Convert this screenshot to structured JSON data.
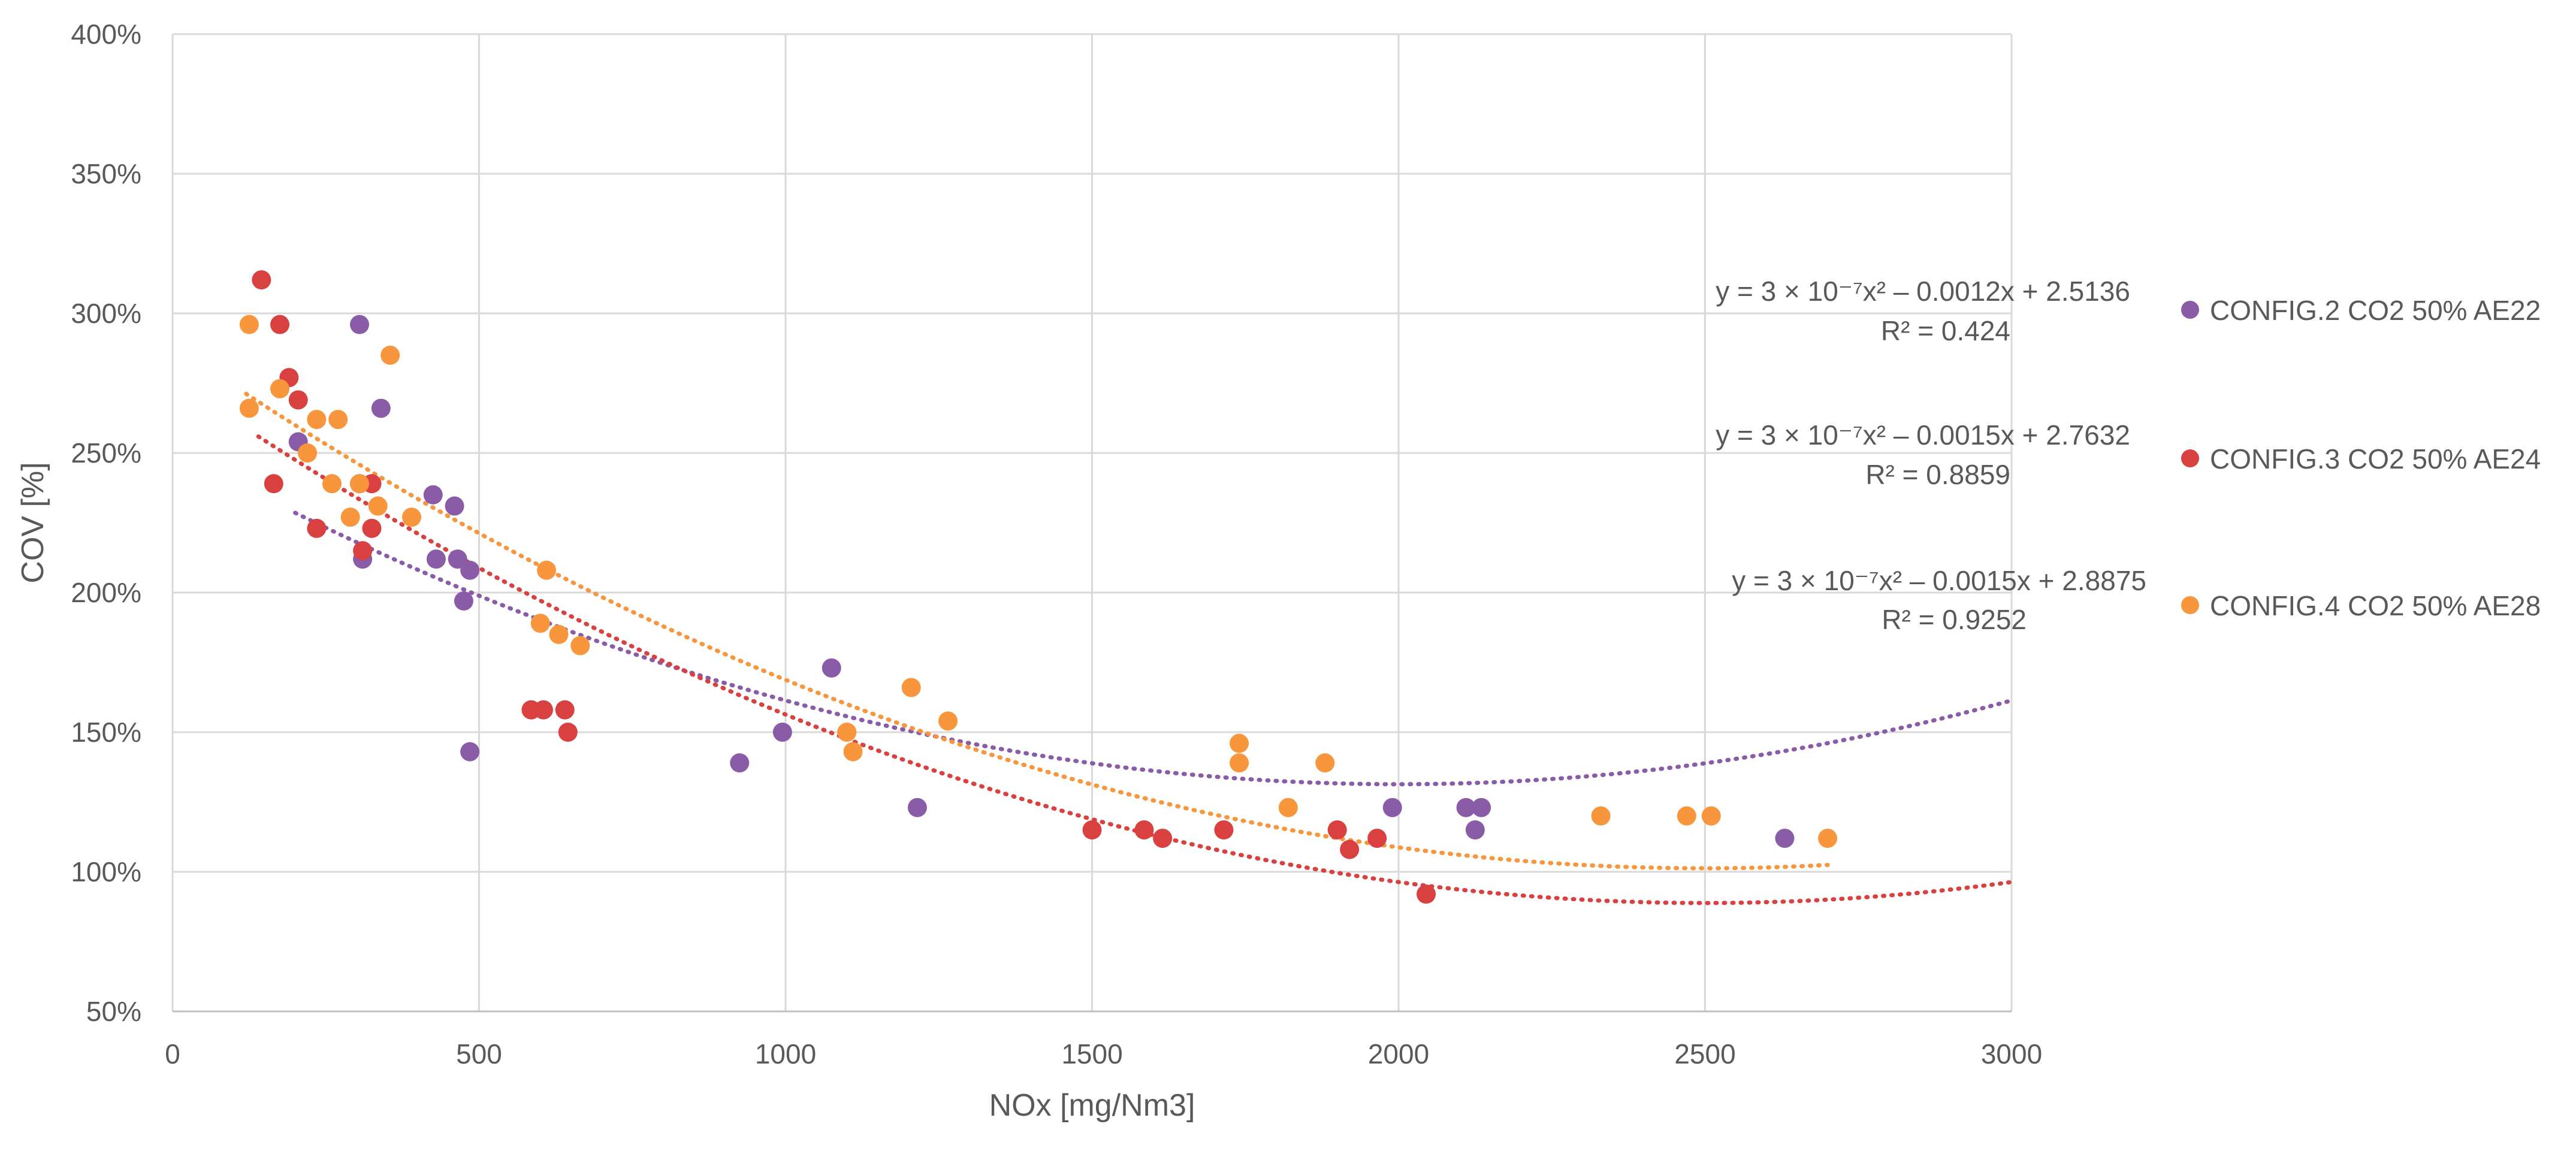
{
  "chart_data": {
    "type": "scatter",
    "title": "",
    "xlabel": "NOx [mg/Nm3]",
    "ylabel": "COV [%]",
    "xlim": [
      0,
      3000
    ],
    "ylim": [
      50,
      400
    ],
    "x_ticks": [
      0,
      500,
      1000,
      1500,
      2000,
      2500,
      3000
    ],
    "y_ticks": [
      50,
      100,
      150,
      200,
      250,
      300,
      350,
      400
    ],
    "x_tick_labels": [
      "0",
      "500",
      "1000",
      "1500",
      "2000",
      "2500",
      "3000"
    ],
    "y_tick_labels": [
      "50%",
      "100%",
      "150%",
      "200%",
      "250%",
      "300%",
      "350%",
      "400%"
    ],
    "grid": true,
    "legend_position": "right",
    "series": [
      {
        "name": "CONFIG.2 CO2 50% AE22",
        "color": "#8a5ca8",
        "points": [
          [
            205,
            254
          ],
          [
            305,
            296
          ],
          [
            310,
            212
          ],
          [
            340,
            266
          ],
          [
            425,
            235
          ],
          [
            430,
            212
          ],
          [
            460,
            231
          ],
          [
            465,
            212
          ],
          [
            475,
            197
          ],
          [
            485,
            208
          ],
          [
            485,
            143
          ],
          [
            925,
            139
          ],
          [
            995,
            150
          ],
          [
            1075,
            173
          ],
          [
            1215,
            123
          ],
          [
            1990,
            123
          ],
          [
            2110,
            123
          ],
          [
            2125,
            115
          ],
          [
            2135,
            123
          ],
          [
            2630,
            112
          ]
        ],
        "trendline": {
          "coeffs": [
            3e-07,
            -0.0012,
            2.5136
          ],
          "x_range": [
            200,
            3000
          ],
          "equation": "y = 3 × 10⁻⁷x² – 0.0012x + 2.5136",
          "r2": "R² = 0.424"
        }
      },
      {
        "name": "CONFIG.3 CO2 50% AE24",
        "color": "#d94040",
        "points": [
          [
            145,
            312
          ],
          [
            165,
            239
          ],
          [
            175,
            296
          ],
          [
            190,
            277
          ],
          [
            205,
            269
          ],
          [
            235,
            223
          ],
          [
            305,
            239
          ],
          [
            310,
            215
          ],
          [
            325,
            239
          ],
          [
            325,
            223
          ],
          [
            585,
            158
          ],
          [
            605,
            158
          ],
          [
            640,
            158
          ],
          [
            645,
            150
          ],
          [
            1500,
            115
          ],
          [
            1585,
            115
          ],
          [
            1615,
            112
          ],
          [
            1715,
            115
          ],
          [
            1900,
            115
          ],
          [
            1920,
            108
          ],
          [
            1965,
            112
          ],
          [
            2045,
            92
          ]
        ],
        "trendline": {
          "coeffs": [
            3e-07,
            -0.0015,
            2.7632
          ],
          "x_range": [
            140,
            3000
          ],
          "equation": "y = 3 × 10⁻⁷x² – 0.0015x + 2.7632",
          "r2": "R² = 0.8859"
        }
      },
      {
        "name": "CONFIG.4 CO2 50% AE28",
        "color": "#f7963c",
        "points": [
          [
            125,
            266
          ],
          [
            125,
            296
          ],
          [
            175,
            273
          ],
          [
            220,
            250
          ],
          [
            235,
            262
          ],
          [
            260,
            239
          ],
          [
            270,
            262
          ],
          [
            290,
            227
          ],
          [
            305,
            239
          ],
          [
            335,
            231
          ],
          [
            355,
            285
          ],
          [
            390,
            227
          ],
          [
            600,
            189
          ],
          [
            610,
            208
          ],
          [
            630,
            185
          ],
          [
            665,
            181
          ],
          [
            1100,
            150
          ],
          [
            1110,
            143
          ],
          [
            1205,
            166
          ],
          [
            1265,
            154
          ],
          [
            1740,
            146
          ],
          [
            1740,
            139
          ],
          [
            1820,
            123
          ],
          [
            1880,
            139
          ],
          [
            2330,
            120
          ],
          [
            2470,
            120
          ],
          [
            2510,
            120
          ],
          [
            2700,
            112
          ]
        ],
        "trendline": {
          "coeffs": [
            3e-07,
            -0.0015,
            2.8875
          ],
          "x_range": [
            120,
            2700
          ],
          "equation": "y = 3 × 10⁻⁷x² – 0.0015x + 2.8875",
          "r2": "R² = 0.9252"
        }
      }
    ]
  }
}
